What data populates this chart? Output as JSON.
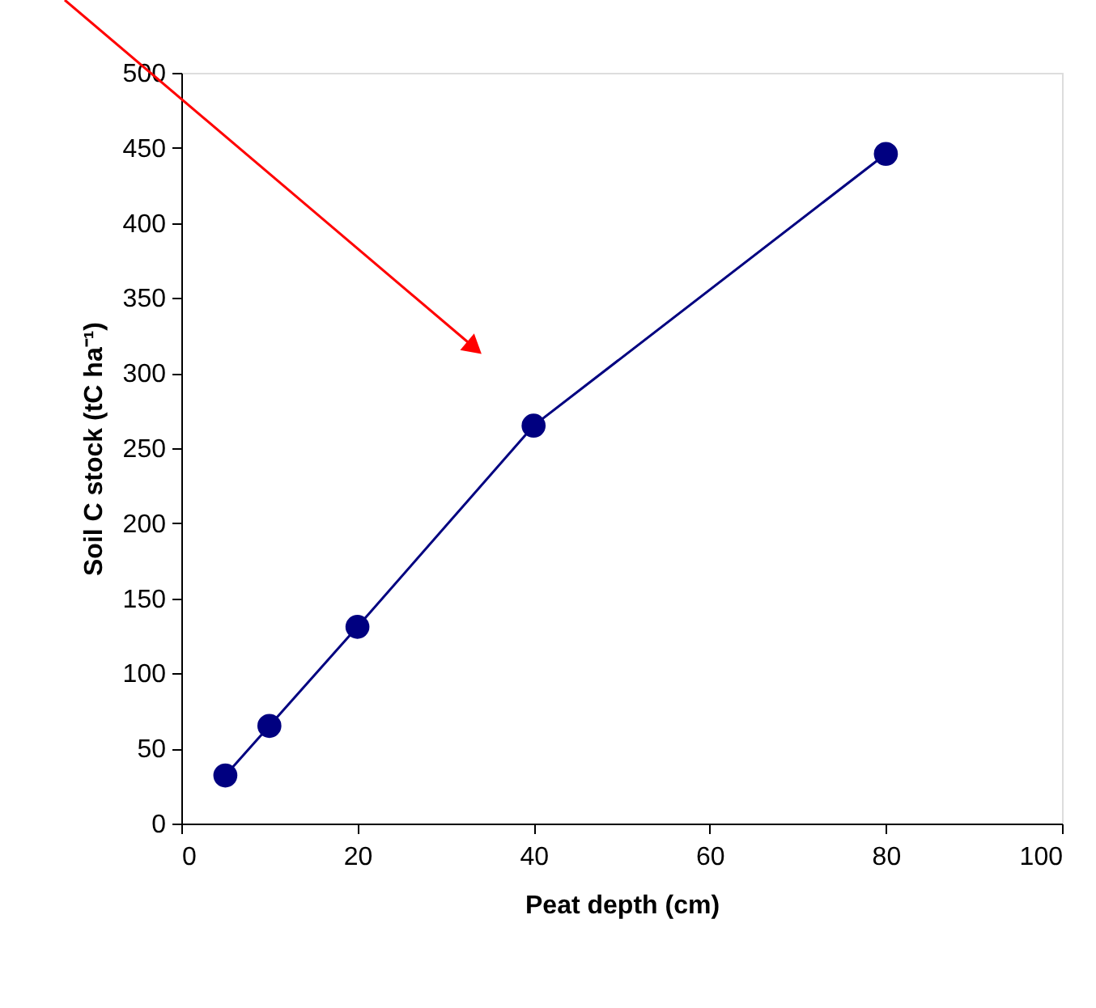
{
  "chart_data": {
    "type": "line",
    "xlabel": "Peat depth (cm)",
    "ylabel": "Soil C stock (tC ha⁻¹)",
    "x": [
      5,
      10,
      20,
      40,
      80
    ],
    "series": [
      {
        "color": "#000080",
        "values": [
          32,
          65,
          131,
          265,
          446
        ]
      }
    ],
    "xlim": [
      0,
      100
    ],
    "xticks": [
      0,
      20,
      40,
      60,
      80,
      100
    ],
    "ylim": [
      0,
      500
    ],
    "yticks": [
      0,
      50,
      100,
      150,
      200,
      250,
      300,
      350,
      400,
      450,
      500
    ],
    "marker": "circle",
    "line_style": "solid",
    "grid": false,
    "legend": false
  }
}
